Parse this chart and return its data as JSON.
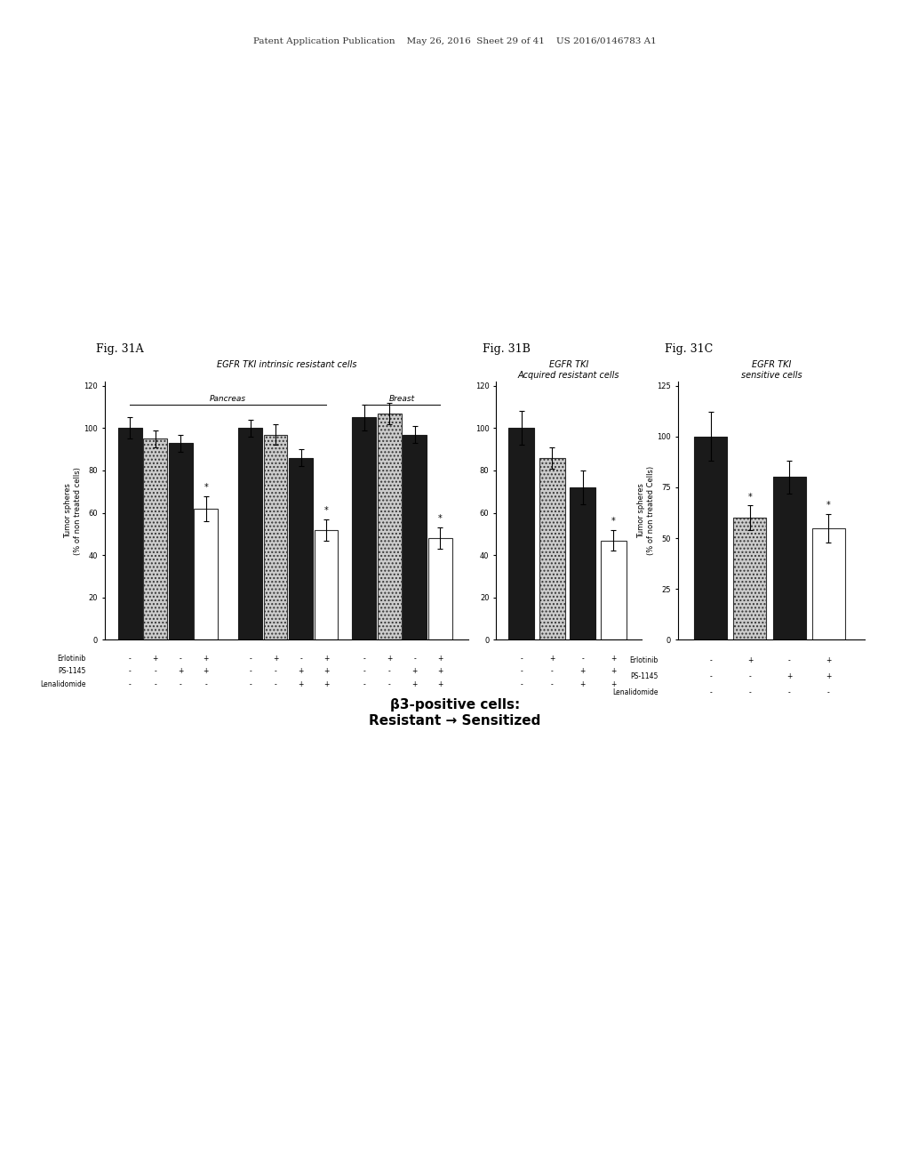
{
  "header_text": "Patent Application Publication    May 26, 2016  Sheet 29 of 41    US 2016/0146783 A1",
  "fig_labels": [
    "Fig. 31A",
    "Fig. 31B",
    "Fig. 31C"
  ],
  "text_color": "#333333",
  "figA": {
    "title": "EGFR TKI intrinsic resistant cells",
    "subtitle_pancreas": "Pancreas",
    "subtitle_breast": "Breast",
    "ylabel": "Tumor spheres\n(% of non treated cells)",
    "ylim": [
      0,
      120
    ],
    "yticks": [
      0,
      20,
      40,
      60,
      80,
      100,
      120
    ],
    "groups": [
      {
        "bars": [
          100,
          95,
          93,
          62
        ],
        "errors": [
          5,
          4,
          4,
          6
        ],
        "star": [
          false,
          false,
          false,
          true
        ]
      },
      {
        "bars": [
          100,
          97,
          86,
          52
        ],
        "errors": [
          4,
          5,
          4,
          5
        ],
        "star": [
          false,
          false,
          false,
          true
        ]
      },
      {
        "bars": [
          105,
          107,
          97,
          48
        ],
        "errors": [
          6,
          5,
          4,
          5
        ],
        "star": [
          false,
          false,
          false,
          true
        ]
      }
    ],
    "erlotinib_all": [
      "-",
      "+",
      "-",
      "+",
      "-",
      "+",
      "-",
      "+",
      "-",
      "+",
      "-",
      "+"
    ],
    "ps1145_all": [
      "-",
      "-",
      "+",
      "+",
      "-",
      "-",
      "+",
      "+",
      "-",
      "-",
      "+",
      "+"
    ],
    "lena_all": [
      "-",
      "-",
      "-",
      "-",
      "-",
      "-",
      "+",
      "+",
      "-",
      "-",
      "+",
      "+"
    ]
  },
  "figB": {
    "title": "EGFR TKI\nAcquired resistant cells",
    "ylabel": "",
    "ylim": [
      0,
      120
    ],
    "yticks": [
      0,
      20,
      40,
      60,
      80,
      100,
      120
    ],
    "bars": [
      100,
      86,
      72,
      47
    ],
    "errors": [
      8,
      5,
      8,
      5
    ],
    "star": [
      false,
      false,
      false,
      true
    ],
    "erlotinib": [
      "-",
      "+",
      "-",
      "+"
    ],
    "ps1145": [
      "-",
      "-",
      "+",
      "+"
    ],
    "lenalidomide": [
      "-",
      "-",
      "+",
      "+"
    ]
  },
  "figC": {
    "title": "EGFR TKI\nsensitive cells",
    "ylabel": "Tumor spheres\n(% of non treated Cells)",
    "ylim": [
      0,
      125
    ],
    "yticks": [
      0,
      25,
      50,
      75,
      100,
      125
    ],
    "bars": [
      100,
      60,
      80,
      55
    ],
    "errors": [
      12,
      6,
      8,
      7
    ],
    "star": [
      false,
      true,
      false,
      true
    ],
    "erlotinib": [
      "-",
      "+",
      "-",
      "+"
    ],
    "ps1145": [
      "-",
      "-",
      "+",
      "+"
    ],
    "lenalidomide": [
      "-",
      "-",
      "-",
      "-"
    ]
  },
  "bottom_text": "β3-positive cells:\nResistant → Sensitized",
  "bar_colors": {
    "black": "#1a1a1a",
    "dotted_fill": "#cccccc",
    "white": "#ffffff",
    "edge": "#333333"
  },
  "background_color": "#ffffff"
}
